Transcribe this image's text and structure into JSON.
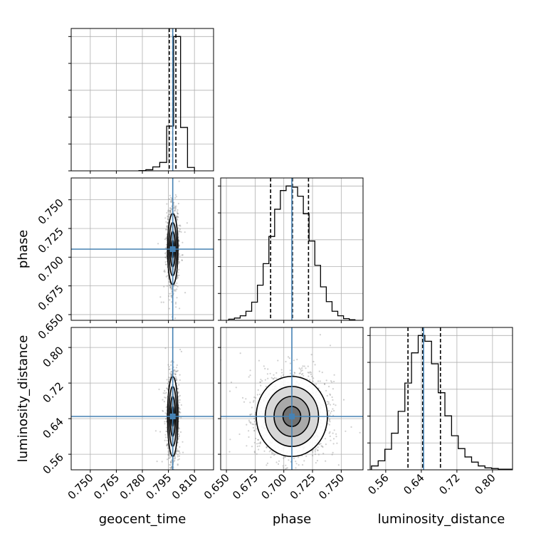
{
  "chart_data": {
    "type": "corner",
    "parameters": [
      "geocent_time",
      "phase",
      "luminosity_distance"
    ],
    "truths": [
      0.7975,
      0.707,
      0.645
    ],
    "colors": {
      "truth": "#4682b4",
      "hist": "#000000",
      "grid": "#b0b0b0"
    },
    "grid": true,
    "axes": {
      "geocent_time": {
        "range": [
          0.739,
          0.821
        ],
        "ticks": [
          0.75,
          0.765,
          0.78,
          0.795,
          0.81
        ],
        "tick_labels": [
          "0.750",
          "0.765",
          "0.780",
          "0.795",
          "0.810"
        ]
      },
      "phase": {
        "range": [
          0.645,
          0.769
        ],
        "ticks": [
          0.65,
          0.675,
          0.7,
          0.725,
          0.75
        ],
        "tick_labels": [
          "0.650",
          "0.675",
          "0.700",
          "0.725",
          "0.750"
        ]
      },
      "luminosity_distance": {
        "range": [
          0.525,
          0.845
        ],
        "ticks": [
          0.56,
          0.64,
          0.72,
          0.8
        ],
        "tick_labels": [
          "0.56",
          "0.64",
          "0.72",
          "0.80"
        ]
      }
    },
    "marginals": {
      "geocent_time": {
        "bins": [
          0.778,
          0.782,
          0.786,
          0.79,
          0.794,
          0.798,
          0.802,
          0.806,
          0.81
        ],
        "counts": [
          1,
          4,
          14,
          30,
          160,
          480,
          155,
          12,
          1
        ],
        "quantiles": [
          0.7955,
          0.7975,
          0.7993
        ]
      },
      "phase": {
        "bins": [
          0.652,
          0.657,
          0.662,
          0.667,
          0.672,
          0.677,
          0.682,
          0.687,
          0.692,
          0.697,
          0.702,
          0.707,
          0.712,
          0.717,
          0.722,
          0.727,
          0.732,
          0.737,
          0.742,
          0.747,
          0.752,
          0.757,
          0.762
        ],
        "counts": [
          2,
          4,
          8,
          16,
          32,
          62,
          100,
          148,
          196,
          229,
          237,
          235,
          219,
          188,
          140,
          97,
          59,
          33,
          16,
          8,
          3,
          1
        ],
        "quantiles": [
          0.6885,
          0.7075,
          0.7215
        ]
      },
      "luminosity_distance": {
        "bins": [
          0.528,
          0.543,
          0.558,
          0.573,
          0.588,
          0.603,
          0.618,
          0.633,
          0.648,
          0.663,
          0.678,
          0.693,
          0.708,
          0.723,
          0.738,
          0.753,
          0.768,
          0.783,
          0.798,
          0.813,
          0.828,
          0.843
        ],
        "counts": [
          6,
          14,
          32,
          57,
          91,
          135,
          182,
          209,
          200,
          165,
          120,
          84,
          53,
          33,
          20,
          12,
          6,
          3,
          2,
          1,
          1
        ],
        "quantiles": [
          0.61,
          0.643,
          0.683
        ]
      }
    },
    "joint": [
      {
        "x": "geocent_time",
        "y": "phase",
        "center": [
          0.7975,
          0.707
        ],
        "sigma": [
          0.0015,
          0.0155
        ]
      },
      {
        "x": "geocent_time",
        "y": "luminosity_distance",
        "center": [
          0.7975,
          0.645
        ],
        "sigma": [
          0.0015,
          0.045
        ]
      },
      {
        "x": "phase",
        "y": "luminosity_distance",
        "center": [
          0.707,
          0.645
        ],
        "sigma": [
          0.0155,
          0.045
        ]
      }
    ],
    "contour_levels": [
      0.5,
      1.0,
      1.5,
      2.0
    ]
  }
}
